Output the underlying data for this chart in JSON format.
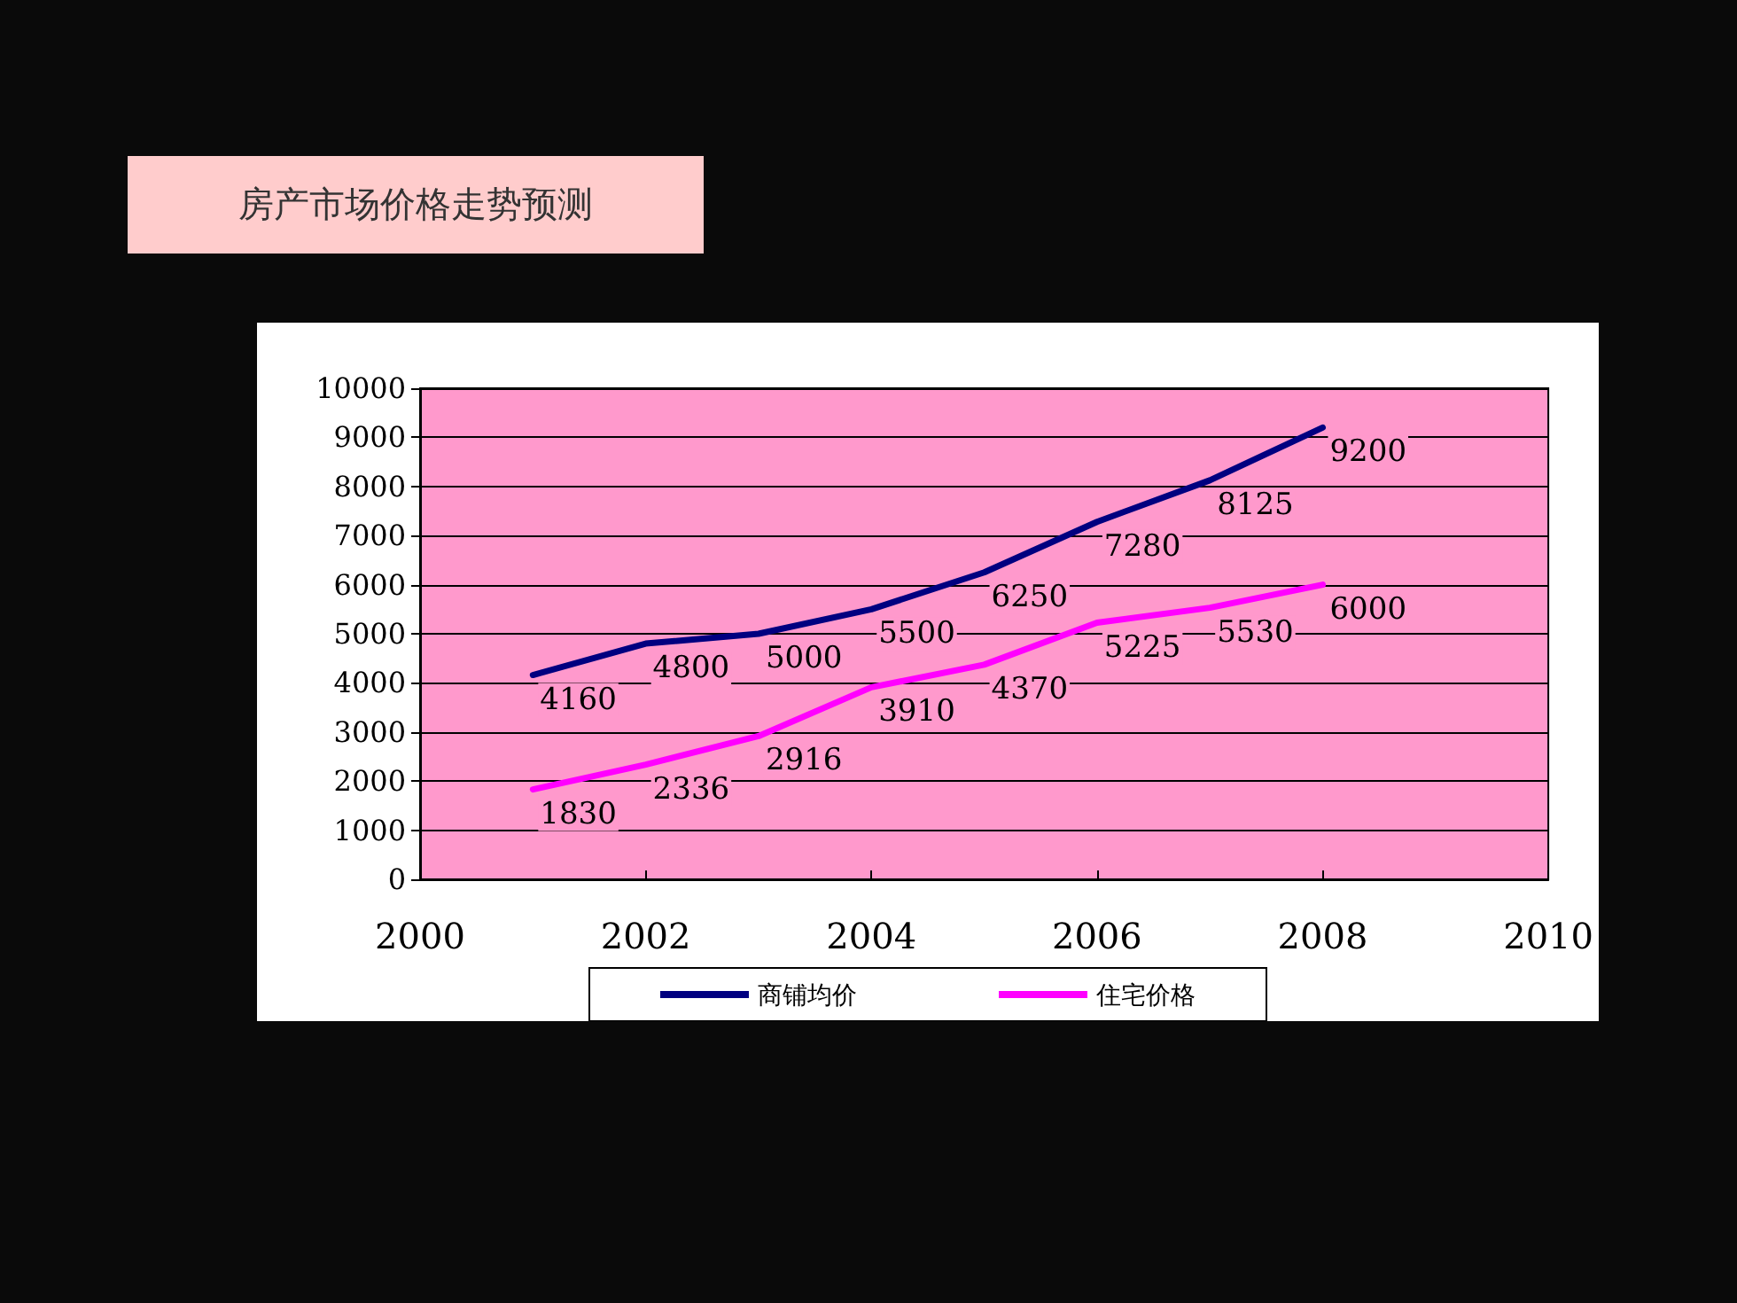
{
  "chart_data": {
    "type": "line",
    "title": "房产市场价格走势预测",
    "x": [
      2001,
      2002,
      2003,
      2004,
      2005,
      2006,
      2007,
      2008
    ],
    "series": [
      {
        "name": "商铺均价",
        "color": "#000080",
        "values": [
          4160,
          4800,
          5000,
          5500,
          6250,
          7280,
          8125,
          9200
        ]
      },
      {
        "name": "住宅价格",
        "color": "#ff00ff",
        "values": [
          1830,
          2336,
          2916,
          3910,
          4370,
          5225,
          5530,
          6000
        ]
      }
    ],
    "xlim": [
      2000,
      2010
    ],
    "xticks": [
      2000,
      2002,
      2004,
      2006,
      2008,
      2010
    ],
    "ylim": [
      0,
      10000
    ],
    "yticks": [
      0,
      1000,
      2000,
      3000,
      4000,
      5000,
      6000,
      7000,
      8000,
      9000,
      10000
    ],
    "grid": "y",
    "legend": "bottom",
    "marker": "none",
    "line_style": "solid",
    "data_labels": true
  }
}
